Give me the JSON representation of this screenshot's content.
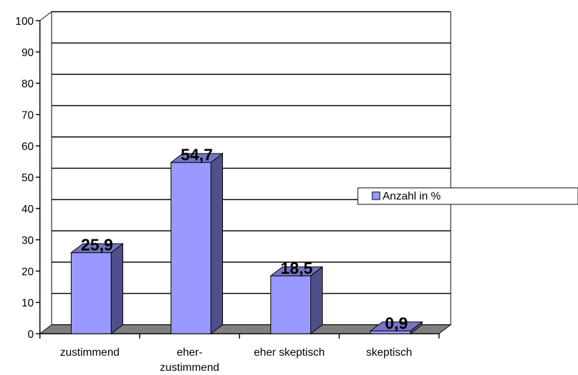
{
  "chart_data": {
    "type": "bar",
    "categories": [
      "zustimmend",
      "eher-\nzustimmend",
      "eher skeptisch",
      "skeptisch"
    ],
    "series": [
      {
        "name": "Anzahl in %",
        "values": [
          25.9,
          54.7,
          18.5,
          0.9
        ],
        "color": "#9999ff"
      }
    ],
    "data_labels": [
      "25,9",
      "54,7",
      "18,5",
      "0,9"
    ],
    "yticks": [
      0,
      10,
      20,
      30,
      40,
      50,
      60,
      70,
      80,
      90,
      100
    ],
    "ylim": [
      0,
      100
    ],
    "grid": true,
    "three_d": true,
    "legend_position": "right",
    "colors": {
      "bar_front": "#9999ff",
      "bar_side": "#4f4f8a",
      "bar_top": "#7575c4",
      "floor": "#808080",
      "grid": "#000000"
    }
  }
}
